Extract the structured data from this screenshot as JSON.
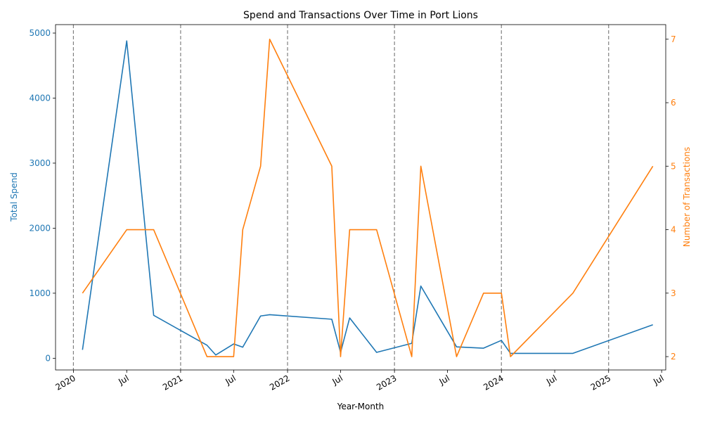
{
  "chart_data": {
    "type": "line",
    "title": "Spend and Transactions Over Time in Port Lions",
    "xlabel": "Year-Month",
    "ylabel_left": "Total Spend",
    "ylabel_right": "Number of Transactions",
    "x_range": [
      "2019-11-01",
      "2025-07-15"
    ],
    "ylim_left": [
      -180,
      5130
    ],
    "ylim_right": [
      1.79,
      7.23
    ],
    "yticks_left": [
      0,
      1000,
      2000,
      3000,
      4000,
      5000
    ],
    "yticks_right": [
      2,
      3,
      4,
      5,
      6,
      7
    ],
    "xticks": [
      {
        "date": "2020-01-01",
        "label": "2020"
      },
      {
        "date": "2020-07-01",
        "label": "Jul"
      },
      {
        "date": "2021-01-01",
        "label": "2021"
      },
      {
        "date": "2021-07-01",
        "label": "Jul"
      },
      {
        "date": "2022-01-01",
        "label": "2022"
      },
      {
        "date": "2022-07-01",
        "label": "Jul"
      },
      {
        "date": "2023-01-01",
        "label": "2023"
      },
      {
        "date": "2023-07-01",
        "label": "Jul"
      },
      {
        "date": "2024-01-01",
        "label": "2024"
      },
      {
        "date": "2024-07-01",
        "label": "Jul"
      },
      {
        "date": "2025-01-01",
        "label": "2025"
      },
      {
        "date": "2025-07-01",
        "label": "Jul"
      }
    ],
    "year_lines": [
      "2020-01-01",
      "2021-01-01",
      "2022-01-01",
      "2023-01-01",
      "2024-01-01",
      "2025-01-01"
    ],
    "grid": false,
    "series": [
      {
        "axis": "left",
        "color": "#1f77b4",
        "x": [
          "2020-02-01",
          "2020-07-01",
          "2020-10-01",
          "2021-04-01",
          "2021-05-01",
          "2021-07-01",
          "2021-08-01",
          "2021-10-01",
          "2021-11-01",
          "2022-06-01",
          "2022-07-01",
          "2022-08-01",
          "2022-11-01",
          "2023-03-01",
          "2023-04-01",
          "2023-08-01",
          "2023-11-01",
          "2024-01-01",
          "2024-02-01",
          "2024-09-01",
          "2025-06-01"
        ],
        "values": [
          130,
          4880,
          660,
          200,
          50,
          220,
          170,
          650,
          670,
          600,
          90,
          620,
          90,
          230,
          1110,
          175,
          155,
          275,
          75,
          75,
          515
        ]
      },
      {
        "axis": "right",
        "color": "#ff7f0e",
        "x": [
          "2020-02-01",
          "2020-07-01",
          "2020-10-01",
          "2021-04-01",
          "2021-05-01",
          "2021-07-01",
          "2021-08-01",
          "2021-10-01",
          "2021-11-01",
          "2022-06-01",
          "2022-07-01",
          "2022-08-01",
          "2022-11-01",
          "2023-03-01",
          "2023-04-01",
          "2023-08-01",
          "2023-11-01",
          "2024-01-01",
          "2024-02-01",
          "2024-09-01",
          "2025-06-01"
        ],
        "values": [
          3,
          4,
          4,
          2,
          2,
          2,
          4,
          5,
          7,
          5,
          2,
          4,
          4,
          2,
          5,
          2,
          3,
          3,
          2,
          3,
          5
        ]
      }
    ],
    "colors": {
      "left_axis": "#1f77b4",
      "right_axis": "#ff7f0e",
      "year_line": "#808080"
    }
  }
}
